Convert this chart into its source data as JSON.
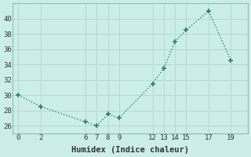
{
  "x": [
    0,
    2,
    6,
    7,
    8,
    9,
    12,
    13,
    14,
    15,
    17,
    19
  ],
  "y": [
    30,
    28.5,
    26.5,
    26,
    27.5,
    27,
    31.5,
    33.5,
    37,
    38.5,
    41,
    34.5
  ],
  "xlabel": "Humidex (Indice chaleur)",
  "xticks": [
    0,
    2,
    6,
    7,
    8,
    9,
    12,
    13,
    14,
    15,
    17,
    19
  ],
  "yticks": [
    26,
    28,
    30,
    32,
    34,
    36,
    38,
    40
  ],
  "ylim": [
    25.0,
    42.0
  ],
  "xlim": [
    -0.5,
    20.5
  ],
  "line_color": "#2a7d6e",
  "bg_color": "#cceee8",
  "grid_color": "#b8d8d2",
  "marker": "+",
  "markersize": 4,
  "linewidth": 1.0,
  "tick_fontsize": 6.5,
  "xlabel_fontsize": 7.5
}
